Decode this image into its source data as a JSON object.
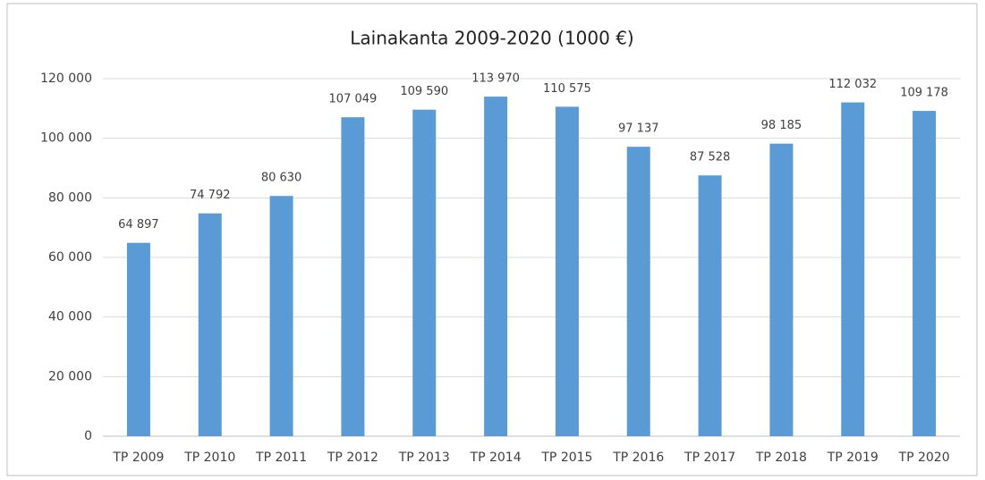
{
  "chart_data": {
    "type": "bar",
    "title": "Lainakanta  2009-2020 (1000 €)",
    "categories": [
      "TP 2009",
      "TP 2010",
      "TP 2011",
      "TP 2012",
      "TP 2013",
      "TP 2014",
      "TP 2015",
      "TP 2016",
      "TP 2017",
      "TP 2018",
      "TP 2019",
      "TP 2020"
    ],
    "values": [
      64897,
      74792,
      80630,
      107049,
      109590,
      113970,
      110575,
      97137,
      87528,
      98185,
      112032,
      109178
    ],
    "value_labels": [
      "64 897",
      "74 792",
      "80 630",
      "107 049",
      "109 590",
      "113 970",
      "110 575",
      "97 137",
      "87 528",
      "98 185",
      "112 032",
      "109 178"
    ],
    "color": "#5b9bd5",
    "ylim": [
      0,
      120000
    ],
    "yticks": [
      0,
      {
        "value": 20000,
        "label": "20 000"
      },
      {
        "value": 40000,
        "label": "40 000"
      },
      {
        "value": 60000,
        "label": "60 000"
      },
      {
        "value": 80000,
        "label": "80 000"
      },
      {
        "value": 100000,
        "label": "100 000"
      },
      {
        "value": 120000,
        "label": "120 000"
      }
    ],
    "grid": true
  }
}
